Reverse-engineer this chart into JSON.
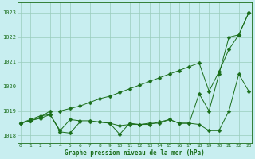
{
  "xlabel": "Graphe pression niveau de la mer (hPa)",
  "ylim": [
    1017.7,
    1023.4
  ],
  "xlim": [
    -0.3,
    23.3
  ],
  "yticks": [
    1018,
    1019,
    1020,
    1021,
    1022,
    1023
  ],
  "xticks": [
    0,
    1,
    2,
    3,
    4,
    5,
    6,
    7,
    8,
    9,
    10,
    11,
    12,
    13,
    14,
    15,
    16,
    17,
    18,
    19,
    20,
    21,
    22,
    23
  ],
  "xtick_labels": [
    "0",
    "1",
    "2",
    "3",
    "4",
    "5",
    "6",
    "7",
    "8",
    "9",
    "10",
    "11",
    "12",
    "13",
    "14",
    "15",
    "16",
    "17",
    "18",
    "19",
    "20",
    "21",
    "22",
    "23"
  ],
  "background_color": "#c8eef0",
  "grid_color": "#99ccbb",
  "line_color": "#1a6e1a",
  "markersize": 2.5,
  "series": {
    "line1": [
      1018.5,
      1018.6,
      1018.75,
      1019.0,
      1019.0,
      1019.1,
      1019.2,
      1019.35,
      1019.5,
      1019.6,
      1019.75,
      1019.9,
      1020.05,
      1020.2,
      1020.35,
      1020.5,
      1020.65,
      1020.8,
      1020.95,
      1019.8,
      1020.6,
      1021.5,
      1022.1,
      1023.0
    ],
    "line2": [
      1018.5,
      1018.65,
      1018.8,
      1018.85,
      1018.2,
      1018.65,
      1018.6,
      1018.6,
      1018.55,
      1018.5,
      1018.05,
      1018.5,
      1018.45,
      1018.5,
      1018.5,
      1018.65,
      1018.5,
      1018.5,
      1018.45,
      1018.2,
      1018.2,
      1019.0,
      1020.5,
      1019.8
    ],
    "line3": [
      1018.5,
      1018.6,
      1018.7,
      1018.85,
      1018.15,
      1018.1,
      1018.55,
      1018.55,
      1018.55,
      1018.5,
      1018.4,
      1018.45,
      1018.45,
      1018.45,
      1018.55,
      1018.65,
      1018.5,
      1018.5,
      1019.7,
      1019.0,
      1020.5,
      1022.0,
      1022.1,
      1023.0
    ]
  }
}
